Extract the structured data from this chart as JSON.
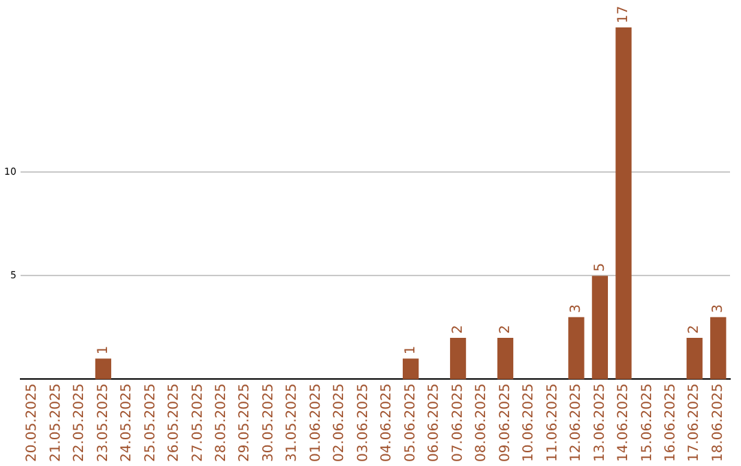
{
  "chart_data": {
    "type": "bar",
    "categories": [
      "20.05.2025",
      "21.05.2025",
      "22.05.2025",
      "23.05.2025",
      "24.05.2025",
      "25.05.2025",
      "26.05.2025",
      "27.05.2025",
      "28.05.2025",
      "29.05.2025",
      "30.05.2025",
      "31.05.2025",
      "01.06.2025",
      "02.06.2025",
      "03.06.2025",
      "04.06.2025",
      "05.06.2025",
      "06.06.2025",
      "07.06.2025",
      "08.06.2025",
      "09.06.2025",
      "10.06.2025",
      "11.06.2025",
      "12.06.2025",
      "13.06.2025",
      "14.06.2025",
      "15.06.2025",
      "16.06.2025",
      "17.06.2025",
      "18.06.2025"
    ],
    "values": [
      0,
      0,
      0,
      1,
      0,
      0,
      0,
      0,
      0,
      0,
      0,
      0,
      0,
      0,
      0,
      0,
      1,
      0,
      2,
      0,
      2,
      0,
      0,
      3,
      5,
      17,
      0,
      0,
      2,
      3
    ],
    "value_labels": [
      null,
      null,
      null,
      "1",
      null,
      null,
      null,
      null,
      null,
      null,
      null,
      null,
      null,
      null,
      null,
      null,
      "1",
      null,
      "2",
      null,
      "2",
      null,
      null,
      "3",
      "5",
      "17",
      null,
      null,
      "2",
      "3"
    ],
    "color": "#a0522d",
    "ylim": [
      0,
      17
    ],
    "yticks": [
      5,
      10
    ],
    "grid": "y",
    "legend": false
  }
}
